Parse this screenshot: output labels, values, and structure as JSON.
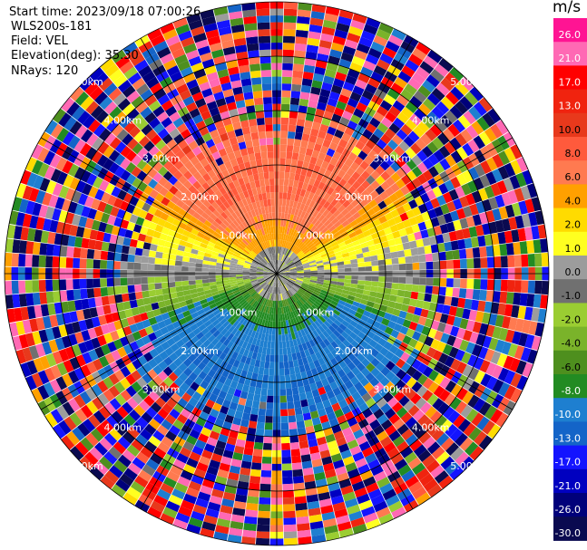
{
  "header": {
    "start_time": "Start time: 2023/09/18 07:00:26",
    "instrument": "WLS200s-181",
    "field": "Field: VEL",
    "elevation": "Elevation(deg): 35.30",
    "nrays": "NRays: 120"
  },
  "colorbar": {
    "unit": "m/s",
    "ticks": [
      "26.0",
      "21.0",
      "17.0",
      "13.0",
      "10.0",
      "8.0",
      "6.0",
      "4.0",
      "2.0",
      "1.0",
      "0.0",
      "-1.0",
      "-2.0",
      "-4.0",
      "-6.0",
      "-8.0",
      "-10.0",
      "-13.0",
      "-17.0",
      "-21.0",
      "-26.0",
      "-30.0"
    ],
    "colors": [
      "#ff1493",
      "#ff69b4",
      "#ff0000",
      "#f0230f",
      "#e8391c",
      "#ff5a3c",
      "#ff7a50",
      "#ffa000",
      "#ffdb00",
      "#ffff20",
      "#9c9c9c",
      "#707070",
      "#9acd32",
      "#7ab32a",
      "#4e8f1e",
      "#228b22",
      "#1e7fd0",
      "#1464c8",
      "#1414ff",
      "#0000c0",
      "#00007a",
      "#0a0a50"
    ]
  },
  "chart_data": {
    "type": "ppi",
    "field": "VEL",
    "units": "m/s",
    "nrays": 120,
    "range_rings_km": [
      1.0,
      2.0,
      3.0,
      4.0,
      5.0
    ],
    "range_ring_labels": [
      "1.00km",
      "2.00km",
      "3.00km",
      "4.00km",
      "5.00km"
    ],
    "max_range_km": 5.0,
    "azimuth_lines_deg": [
      0,
      30,
      60,
      90,
      120,
      150,
      180,
      210,
      240,
      270,
      300,
      330
    ],
    "vmin": -30.0,
    "vmax": 30.0,
    "velocity_pattern": {
      "north_sector_ms": 8.0,
      "east_west_sector_ms": 2.0,
      "near_center_ms": 0.0,
      "south_sector_ms": -8.0,
      "south_deep_ms": -10.0,
      "noise_beyond_km": 3.0
    }
  }
}
